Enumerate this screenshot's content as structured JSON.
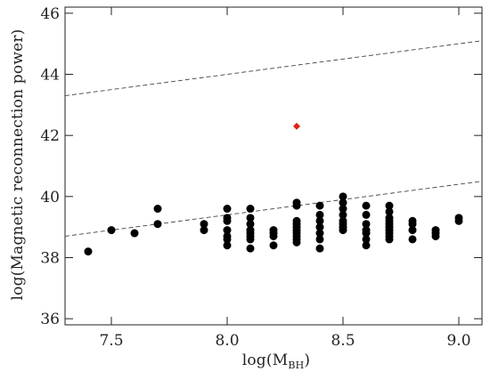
{
  "chart_data": {
    "type": "scatter",
    "title": "",
    "xlabel": "log(M",
    "xlabel_subscript": "BH",
    "xlabel_close": ")",
    "ylabel": "log(Magnetic reconnection power)",
    "xlim": [
      7.3,
      9.1
    ],
    "ylim": [
      35.8,
      46.2
    ],
    "xticks": [
      7.5,
      8.0,
      8.5,
      9.0
    ],
    "xtick_labels": [
      "7.5",
      "8.0",
      "8.5",
      "9.0"
    ],
    "yticks": [
      36,
      38,
      40,
      42,
      44,
      46
    ],
    "ytick_labels": [
      "36",
      "38",
      "40",
      "42",
      "44",
      "46"
    ],
    "grid": false,
    "colors": {
      "points": "#000000",
      "highlight": "#e0201a",
      "lines": "#444444"
    },
    "series": [
      {
        "marker": "circle",
        "color": "#000000",
        "points": [
          [
            7.4,
            38.2
          ],
          [
            7.5,
            38.9
          ],
          [
            7.6,
            38.8
          ],
          [
            7.7,
            39.6
          ],
          [
            7.7,
            39.1
          ],
          [
            7.9,
            39.1
          ],
          [
            7.9,
            38.9
          ],
          [
            8.0,
            39.6
          ],
          [
            8.0,
            39.3
          ],
          [
            8.0,
            39.2
          ],
          [
            8.0,
            38.9
          ],
          [
            8.0,
            38.7
          ],
          [
            8.0,
            38.6
          ],
          [
            8.0,
            38.4
          ],
          [
            8.1,
            39.6
          ],
          [
            8.1,
            39.3
          ],
          [
            8.1,
            39.1
          ],
          [
            8.1,
            38.9
          ],
          [
            8.1,
            38.8
          ],
          [
            8.1,
            38.7
          ],
          [
            8.1,
            38.6
          ],
          [
            8.1,
            38.3
          ],
          [
            8.2,
            38.9
          ],
          [
            8.2,
            38.8
          ],
          [
            8.2,
            38.7
          ],
          [
            8.2,
            38.4
          ],
          [
            8.3,
            39.8
          ],
          [
            8.3,
            39.7
          ],
          [
            8.3,
            39.2
          ],
          [
            8.3,
            39.1
          ],
          [
            8.3,
            39.0
          ],
          [
            8.3,
            38.9
          ],
          [
            8.3,
            38.8
          ],
          [
            8.3,
            38.7
          ],
          [
            8.3,
            38.6
          ],
          [
            8.3,
            38.5
          ],
          [
            8.4,
            39.7
          ],
          [
            8.4,
            39.4
          ],
          [
            8.4,
            39.2
          ],
          [
            8.4,
            39.0
          ],
          [
            8.4,
            38.8
          ],
          [
            8.4,
            38.6
          ],
          [
            8.4,
            38.3
          ],
          [
            8.5,
            40.0
          ],
          [
            8.5,
            39.8
          ],
          [
            8.5,
            39.6
          ],
          [
            8.5,
            39.4
          ],
          [
            8.5,
            39.2
          ],
          [
            8.5,
            39.1
          ],
          [
            8.5,
            39.0
          ],
          [
            8.5,
            38.9
          ],
          [
            8.6,
            39.7
          ],
          [
            8.6,
            39.4
          ],
          [
            8.6,
            39.1
          ],
          [
            8.6,
            38.9
          ],
          [
            8.6,
            38.8
          ],
          [
            8.6,
            38.6
          ],
          [
            8.6,
            38.4
          ],
          [
            8.7,
            39.7
          ],
          [
            8.7,
            39.5
          ],
          [
            8.7,
            39.3
          ],
          [
            8.7,
            39.2
          ],
          [
            8.7,
            39.1
          ],
          [
            8.7,
            39.0
          ],
          [
            8.7,
            38.9
          ],
          [
            8.7,
            38.8
          ],
          [
            8.7,
            38.7
          ],
          [
            8.7,
            38.6
          ],
          [
            8.8,
            39.2
          ],
          [
            8.8,
            39.1
          ],
          [
            8.8,
            38.9
          ],
          [
            8.8,
            38.6
          ],
          [
            8.9,
            38.9
          ],
          [
            8.9,
            38.8
          ],
          [
            8.9,
            38.7
          ],
          [
            9.0,
            39.3
          ],
          [
            9.0,
            39.2
          ]
        ]
      },
      {
        "marker": "diamond",
        "color": "#e0201a",
        "points": [
          [
            8.3,
            42.3
          ]
        ]
      }
    ],
    "reference_lines": [
      {
        "style": "dashed",
        "x": [
          7.3,
          9.1
        ],
        "y": [
          43.3,
          45.1
        ]
      },
      {
        "style": "dashed",
        "x": [
          7.3,
          9.1
        ],
        "y": [
          38.7,
          40.5
        ]
      }
    ]
  }
}
